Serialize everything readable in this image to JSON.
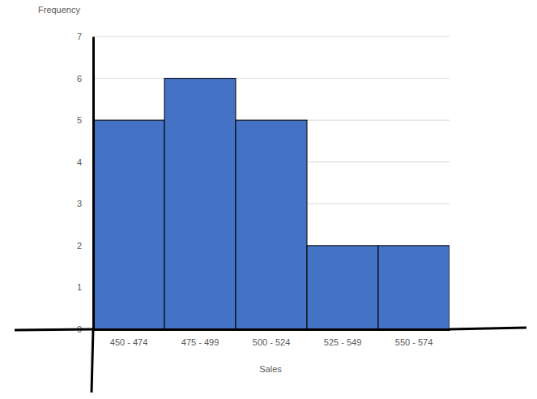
{
  "chart_data": {
    "type": "bar",
    "categories": [
      "450 - 474",
      "475 - 499",
      "500 - 524",
      "525 - 549",
      "550 - 574"
    ],
    "values": [
      5,
      6,
      5,
      2,
      2
    ],
    "color": "#4472c4",
    "x_label": "Sales",
    "y_label": "Frequency",
    "ylim": [
      0,
      7
    ],
    "yticks": [
      0,
      1,
      2,
      3,
      4,
      5,
      6,
      7
    ],
    "grid": true
  }
}
